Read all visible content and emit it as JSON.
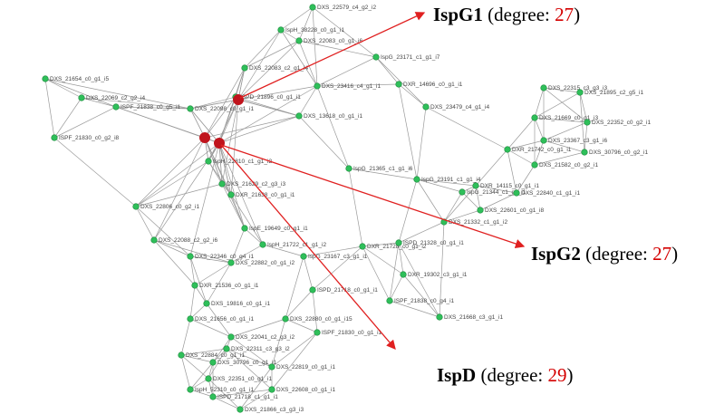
{
  "nodes": [
    {
      "label": "DXS_22579_c4_g2_i2"
    },
    {
      "label": "IspH_38228_c0_g1_i1"
    },
    {
      "label": "DXS_22083_c0_g1_i6"
    },
    {
      "label": "IspG_23171_c1_g1_i7"
    },
    {
      "label": "DXS_21654_c0_g1_i5"
    },
    {
      "label": "DXS_22069_c2_g2_i4"
    },
    {
      "label": "ISPF_21838_c0_g5_i1"
    },
    {
      "label": "DXS_22083_c2_g1_i4"
    },
    {
      "label": "DXR_14696_c0_g1_i1"
    },
    {
      "label": "DXS_23416_c4_g1_i1"
    },
    {
      "label": "DXS_23479_c4_g1_i4"
    },
    {
      "label": "DXS_22315_c3_g3_i3"
    },
    {
      "label": "DXS_21895_c2_g5_i1"
    },
    {
      "label": "DXS_21669_c0_g1_i3"
    },
    {
      "label": "DXS_22352_c0_g2_i1"
    },
    {
      "label": "DXS_23367_c3_g1_i6"
    },
    {
      "label": "DXS_30796_c0_g2_i1"
    },
    {
      "label": "DXR_21742_c0_g1_i1"
    },
    {
      "label": "DXS_21582_c0_g2_i1"
    },
    {
      "label": "ISPF_21830_c0_g2_i8"
    },
    {
      "label": "DXS_22098_c0_g1_i1"
    },
    {
      "label": "ISPD_21896_c0_g1_i1"
    },
    {
      "label": "DXS_13618_c0_g1_i1"
    },
    {
      "label": "IspH_22810_c1_g1_i2"
    },
    {
      "label": "IspG_21365_c1_g1_i6"
    },
    {
      "label": "IspG_23191_c1_g1_i4"
    },
    {
      "label": "DXS_21629_c2_g3_i3"
    },
    {
      "label": "DXR_21638_c0_g1_i1"
    },
    {
      "label": "DXS_22806_c0_g2_i1"
    },
    {
      "label": "DXS_22088_c2_g2_i6"
    },
    {
      "label": "IspE_19649_c0_g1_i1"
    },
    {
      "label": "IspH_21722_c1_g1_i2"
    },
    {
      "label": "DXS_22882_c0_g1_i2"
    },
    {
      "label": "DXS_22346_c0_g4_i1"
    },
    {
      "label": "DXR_21536_c0_g1_i1"
    },
    {
      "label": "DXS_19816_c0_g1_i1"
    },
    {
      "label": "DXS_21656_c0_g1_i1"
    },
    {
      "label": "DXS_22880_c0_g1_i15"
    },
    {
      "label": "ISPF_21838_c0_g4_i1"
    },
    {
      "label": "ISPF_21830_c0_g1_i1"
    },
    {
      "label": "DXR_19302_c3_g1_i1"
    },
    {
      "label": "DXS_21668_c3_g1_i1"
    },
    {
      "label": "ISPD_21718_c0_g1_i1"
    },
    {
      "label": "IspG_23167_c3_g1_i1"
    },
    {
      "label": "DXR_21728_c0_g1_i2"
    },
    {
      "label": "ISPD_21328_c0_g1_i1"
    },
    {
      "label": "DXS_21332_c1_g1_i2"
    },
    {
      "label": "DXS_22601_c0_g1_i8"
    },
    {
      "label": "IspG_21344_c1_g1_i1"
    },
    {
      "label": "DXR_14115_c0_g1_i1"
    },
    {
      "label": "DXS_22840_c1_g1_i1"
    },
    {
      "label": "DXS_22041_c2_g3_i2"
    },
    {
      "label": "DXS_22884_c0_g1_i1"
    },
    {
      "label": "DXS_30796_c0_g1_i1"
    },
    {
      "label": "DXS_22311_c3_g3_i2"
    },
    {
      "label": "DXS_22351_c0_g1_i1"
    },
    {
      "label": "IspH_52310_c0_g1_i1"
    },
    {
      "label": "ISPD_21718_c1_g1_i1"
    },
    {
      "label": "DXS_21866_c3_g3_i3"
    },
    {
      "label": "DXS_22608_c0_g1_i1"
    },
    {
      "label": "DXS_22819_c0_g1_i1"
    }
  ],
  "callouts": [
    {
      "name": "IspG1",
      "prefix": "(degree: ",
      "degree": 27,
      "suffix": ")"
    },
    {
      "name": "IspG2",
      "prefix": "(degree: ",
      "degree": 27,
      "suffix": ")"
    },
    {
      "name": "IspD",
      "prefix": "(degree: ",
      "degree": 29,
      "suffix": ")"
    }
  ]
}
